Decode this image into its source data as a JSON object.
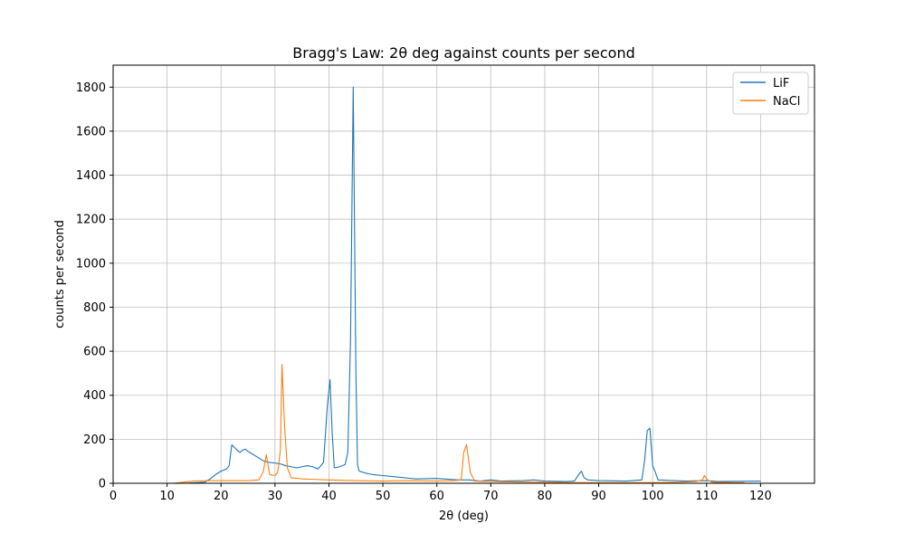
{
  "chart_data": {
    "type": "line",
    "title": "Bragg's Law: 2θ deg against counts per second",
    "xlabel": "2θ (deg)",
    "ylabel": "counts per second",
    "xlim": [
      0,
      130
    ],
    "ylim": [
      0,
      1900
    ],
    "xticks": [
      0,
      10,
      20,
      30,
      40,
      50,
      60,
      70,
      80,
      90,
      100,
      110,
      120
    ],
    "yticks": [
      0,
      200,
      400,
      600,
      800,
      1000,
      1200,
      1400,
      1600,
      1800
    ],
    "grid": true,
    "legend_position": "top-right",
    "series": [
      {
        "name": "LiF",
        "color": "#1f77b4",
        "points": [
          [
            11,
            0
          ],
          [
            14,
            1
          ],
          [
            17,
            5
          ],
          [
            18,
            20
          ],
          [
            19,
            40
          ],
          [
            20,
            55
          ],
          [
            21,
            65
          ],
          [
            21.5,
            80
          ],
          [
            22,
            175
          ],
          [
            23,
            150
          ],
          [
            23.5,
            140
          ],
          [
            24,
            150
          ],
          [
            24.5,
            155
          ],
          [
            25,
            145
          ],
          [
            26,
            130
          ],
          [
            27,
            115
          ],
          [
            28,
            100
          ],
          [
            29,
            95
          ],
          [
            30,
            92
          ],
          [
            31,
            88
          ],
          [
            32,
            80
          ],
          [
            33,
            75
          ],
          [
            34,
            70
          ],
          [
            35,
            75
          ],
          [
            36,
            80
          ],
          [
            37,
            75
          ],
          [
            38,
            65
          ],
          [
            39,
            95
          ],
          [
            39.7,
            350
          ],
          [
            40.2,
            470
          ],
          [
            40.6,
            230
          ],
          [
            41,
            70
          ],
          [
            42,
            75
          ],
          [
            43,
            85
          ],
          [
            43.5,
            140
          ],
          [
            44,
            650
          ],
          [
            44.5,
            1800
          ],
          [
            45,
            500
          ],
          [
            45.3,
            85
          ],
          [
            45.6,
            55
          ],
          [
            47,
            45
          ],
          [
            48,
            40
          ],
          [
            50,
            35
          ],
          [
            52,
            30
          ],
          [
            56,
            20
          ],
          [
            60,
            22
          ],
          [
            64,
            15
          ],
          [
            66,
            15
          ],
          [
            68,
            10
          ],
          [
            70,
            15
          ],
          [
            72,
            10
          ],
          [
            76,
            12
          ],
          [
            78,
            15
          ],
          [
            80,
            10
          ],
          [
            84,
            8
          ],
          [
            85.5,
            10
          ],
          [
            86.3,
            40
          ],
          [
            86.8,
            55
          ],
          [
            87.3,
            25
          ],
          [
            88,
            15
          ],
          [
            90,
            12
          ],
          [
            95,
            10
          ],
          [
            98,
            15
          ],
          [
            98.5,
            100
          ],
          [
            99,
            240
          ],
          [
            99.5,
            250
          ],
          [
            100,
            80
          ],
          [
            100.5,
            50
          ],
          [
            101,
            15
          ],
          [
            104,
            12
          ],
          [
            106,
            10
          ],
          [
            110,
            12
          ],
          [
            112,
            8
          ],
          [
            120,
            10
          ]
        ]
      },
      {
        "name": "NaCl",
        "color": "#ff7f0e",
        "points": [
          [
            11,
            0
          ],
          [
            13,
            5
          ],
          [
            15,
            10
          ],
          [
            18,
            12
          ],
          [
            22,
            12
          ],
          [
            25,
            12
          ],
          [
            27,
            15
          ],
          [
            27.8,
            50
          ],
          [
            28.4,
            130
          ],
          [
            29,
            40
          ],
          [
            30,
            35
          ],
          [
            30.5,
            50
          ],
          [
            31,
            150
          ],
          [
            31.3,
            540
          ],
          [
            31.8,
            250
          ],
          [
            32.3,
            70
          ],
          [
            33,
            25
          ],
          [
            35,
            20
          ],
          [
            37,
            18
          ],
          [
            40,
            15
          ],
          [
            45,
            12
          ],
          [
            50,
            10
          ],
          [
            55,
            12
          ],
          [
            60,
            10
          ],
          [
            63,
            12
          ],
          [
            64.5,
            15
          ],
          [
            65,
            140
          ],
          [
            65.5,
            175
          ],
          [
            66.2,
            50
          ],
          [
            67,
            10
          ],
          [
            70,
            8
          ],
          [
            75,
            6
          ],
          [
            80,
            5
          ],
          [
            85,
            3
          ],
          [
            90,
            3
          ],
          [
            95,
            3
          ],
          [
            100,
            3
          ],
          [
            105,
            5
          ],
          [
            108,
            8
          ],
          [
            109.2,
            15
          ],
          [
            109.6,
            35
          ],
          [
            110.2,
            15
          ],
          [
            111,
            5
          ],
          [
            115,
            3
          ],
          [
            117,
            3
          ]
        ]
      }
    ]
  }
}
